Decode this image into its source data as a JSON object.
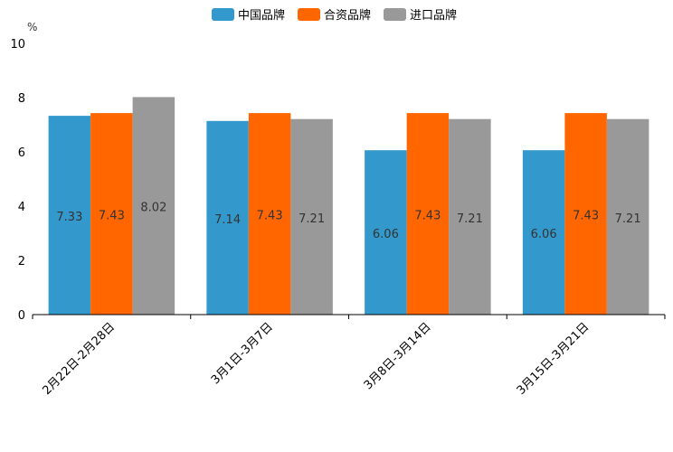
{
  "chart_data": {
    "type": "bar",
    "title": "",
    "unit_label": "%",
    "xlabel": "",
    "ylabel": "%",
    "ylim": [
      0,
      10
    ],
    "yticks": [
      0,
      2,
      4,
      6,
      8,
      10
    ],
    "categories": [
      "2月22日-2月28日",
      "3月1日-3月7日",
      "3月8日-3月14日",
      "3月15日-3月21日"
    ],
    "series": [
      {
        "name": "中国品牌",
        "color": "#3399cc",
        "values": [
          7.33,
          7.14,
          6.06,
          6.06
        ]
      },
      {
        "name": "合资品牌",
        "color": "#ff6600",
        "values": [
          7.43,
          7.43,
          7.43,
          7.43
        ]
      },
      {
        "name": "进口品牌",
        "color": "#999999",
        "values": [
          8.02,
          7.21,
          7.21,
          7.21
        ]
      }
    ],
    "legend_position": "top-center",
    "grid": false
  }
}
